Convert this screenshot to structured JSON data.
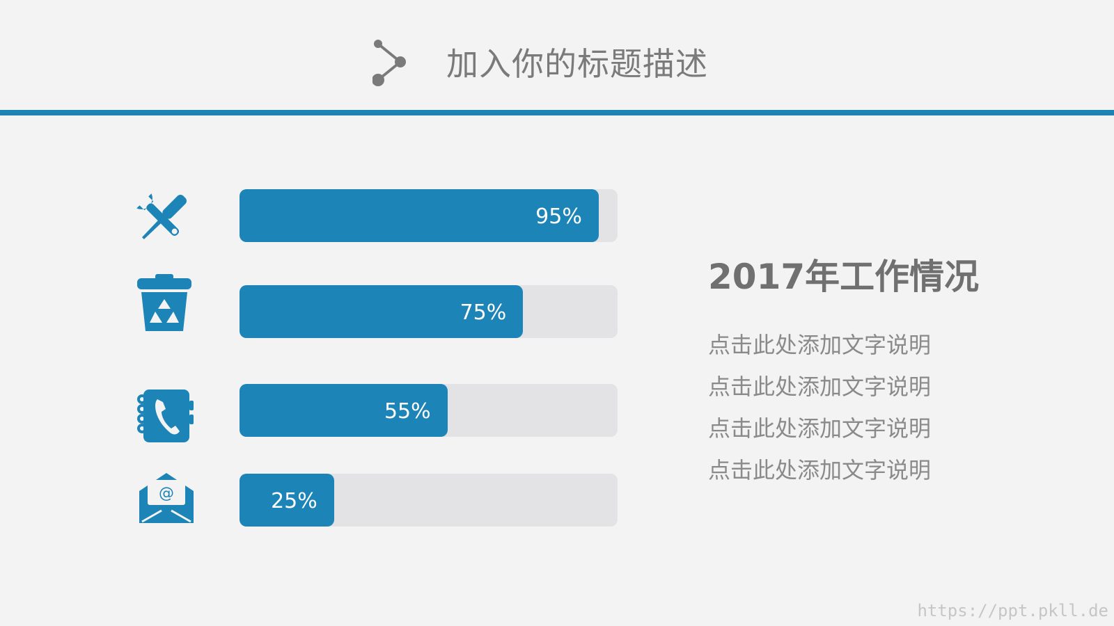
{
  "header": {
    "title": "加入你的标题描述",
    "icon": "share-node-icon"
  },
  "colors": {
    "accent": "#1c84b6",
    "track": "#e3e3e5",
    "background": "#f3f3f4",
    "title_text": "#7a7a7a"
  },
  "bars": [
    {
      "icon": "tools-icon",
      "value": 95,
      "label": "95%"
    },
    {
      "icon": "recycle-bin-icon",
      "value": 75,
      "label": "75%"
    },
    {
      "icon": "phone-book-icon",
      "value": 55,
      "label": "55%"
    },
    {
      "icon": "email-envelope-icon",
      "value": 25,
      "label": "25%"
    }
  ],
  "section": {
    "title": "2017年工作情况",
    "lines": [
      "点击此处添加文字说明",
      "点击此处添加文字说明",
      "点击此处添加文字说明",
      "点击此处添加文字说明"
    ]
  },
  "watermark": "https://ppt.pkll.de"
}
